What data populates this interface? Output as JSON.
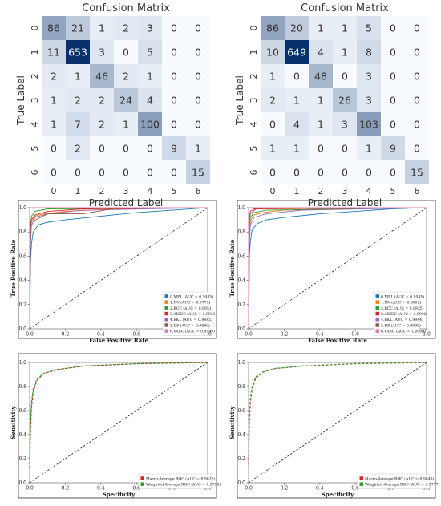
{
  "chart_data": [
    {
      "type": "heatmap",
      "title": "Confusion Matrix",
      "xlabel": "Predicted Label",
      "ylabel": "True Label",
      "x_ticks": [
        "0",
        "1",
        "2",
        "3",
        "4",
        "5",
        "6"
      ],
      "y_ticks": [
        "0",
        "1",
        "2",
        "3",
        "4",
        "5",
        "6"
      ],
      "matrix": [
        [
          86,
          21,
          1,
          2,
          3,
          0,
          0
        ],
        [
          11,
          653,
          3,
          0,
          5,
          0,
          0
        ],
        [
          2,
          1,
          46,
          2,
          1,
          0,
          0
        ],
        [
          1,
          2,
          2,
          24,
          4,
          0,
          0
        ],
        [
          1,
          7,
          2,
          1,
          100,
          0,
          0
        ],
        [
          0,
          2,
          0,
          0,
          0,
          9,
          1
        ],
        [
          0,
          0,
          0,
          0,
          0,
          0,
          15
        ]
      ],
      "colormap": [
        "#f7fbff",
        "#08306b"
      ]
    },
    {
      "type": "heatmap",
      "title": "Confusion Matrix",
      "xlabel": "Predicted Label",
      "ylabel": "True Label",
      "x_ticks": [
        "0",
        "1",
        "2",
        "3",
        "4",
        "5",
        "6"
      ],
      "y_ticks": [
        "0",
        "1",
        "2",
        "3",
        "4",
        "5",
        "6"
      ],
      "matrix": [
        [
          86,
          20,
          1,
          1,
          5,
          0,
          0
        ],
        [
          10,
          649,
          4,
          1,
          8,
          0,
          0
        ],
        [
          1,
          0,
          48,
          0,
          3,
          0,
          0
        ],
        [
          2,
          1,
          1,
          26,
          3,
          0,
          0
        ],
        [
          0,
          4,
          1,
          3,
          103,
          0,
          0
        ],
        [
          1,
          1,
          0,
          0,
          1,
          9,
          0
        ],
        [
          0,
          0,
          0,
          0,
          0,
          0,
          15
        ]
      ],
      "colormap": [
        "#f7fbff",
        "#08306b"
      ]
    },
    {
      "type": "line",
      "xlabel": "False Positive Rate",
      "ylabel": "True Positive Rate",
      "xlim": [
        0,
        1
      ],
      "ylim": [
        0,
        1
      ],
      "x_ticks": [
        "0.0",
        "0.2",
        "0.4",
        "0.6",
        "0.8",
        "1.0"
      ],
      "y_ticks": [
        "0.0",
        "0.2",
        "0.4",
        "0.6",
        "0.8",
        "1.0"
      ],
      "legend_position": "bottom-right",
      "series": [
        {
          "name": "0.MEL (AUC = 0.9435)",
          "color": "#1f77b4",
          "points": [
            [
              0,
              0
            ],
            [
              0.005,
              0.55
            ],
            [
              0.01,
              0.7
            ],
            [
              0.02,
              0.8
            ],
            [
              0.05,
              0.86
            ],
            [
              0.1,
              0.88
            ],
            [
              0.2,
              0.9
            ],
            [
              0.4,
              0.93
            ],
            [
              0.6,
              0.96
            ],
            [
              0.8,
              0.98
            ],
            [
              1,
              1
            ]
          ]
        },
        {
          "name": "1.NV (AUC = 0.9775)",
          "color": "#ff7f0e",
          "points": [
            [
              0,
              0
            ],
            [
              0.005,
              0.75
            ],
            [
              0.01,
              0.88
            ],
            [
              0.03,
              0.93
            ],
            [
              0.08,
              0.95
            ],
            [
              0.2,
              0.97
            ],
            [
              0.5,
              0.99
            ],
            [
              1,
              1
            ]
          ]
        },
        {
          "name": "2.BCC (AUC = 0.9951)",
          "color": "#2ca02c",
          "points": [
            [
              0,
              0
            ],
            [
              0.003,
              0.8
            ],
            [
              0.01,
              0.93
            ],
            [
              0.03,
              0.97
            ],
            [
              0.1,
              0.99
            ],
            [
              1,
              1
            ]
          ]
        },
        {
          "name": "3.AKIEC (AUC = 0.9923)",
          "color": "#d62728",
          "points": [
            [
              0,
              0
            ],
            [
              0.005,
              0.82
            ],
            [
              0.01,
              0.9
            ],
            [
              0.03,
              0.94
            ],
            [
              0.1,
              0.97
            ],
            [
              0.3,
              0.99
            ],
            [
              1,
              1
            ]
          ]
        },
        {
          "name": "4.BKL (AUC = 0.9845)",
          "color": "#9467bd",
          "points": [
            [
              0,
              0
            ],
            [
              0.005,
              0.7
            ],
            [
              0.01,
              0.85
            ],
            [
              0.03,
              0.92
            ],
            [
              0.1,
              0.95
            ],
            [
              0.3,
              0.98
            ],
            [
              1,
              1
            ]
          ]
        },
        {
          "name": "5.DF (AUC = 0.9880)",
          "color": "#8c564b",
          "points": [
            [
              0,
              0
            ],
            [
              0.005,
              0.89
            ],
            [
              0.02,
              0.89
            ],
            [
              0.1,
              0.95
            ],
            [
              0.3,
              0.95
            ],
            [
              0.5,
              1
            ],
            [
              1,
              1
            ]
          ]
        },
        {
          "name": "6.VASC (AUC = 0.9999)",
          "color": "#e377c2",
          "points": [
            [
              0,
              0
            ],
            [
              0.002,
              1
            ],
            [
              1,
              1
            ]
          ]
        }
      ]
    },
    {
      "type": "line",
      "xlabel": "False Positive Rate",
      "ylabel": "True Positive Rate",
      "xlim": [
        0,
        1
      ],
      "ylim": [
        0,
        1
      ],
      "x_ticks": [
        "0.0",
        "0.2",
        "0.4",
        "0.6",
        "0.8",
        "1.0"
      ],
      "y_ticks": [
        "0.0",
        "0.2",
        "0.4",
        "0.6",
        "0.8",
        "1.0"
      ],
      "legend_position": "bottom-right",
      "series": [
        {
          "name": "0.MEL (AUC = 0.9545)",
          "color": "#1f77b4",
          "points": [
            [
              0,
              0
            ],
            [
              0.005,
              0.6
            ],
            [
              0.01,
              0.72
            ],
            [
              0.02,
              0.82
            ],
            [
              0.05,
              0.87
            ],
            [
              0.1,
              0.9
            ],
            [
              0.2,
              0.92
            ],
            [
              0.4,
              0.95
            ],
            [
              0.6,
              0.97
            ],
            [
              0.8,
              0.99
            ],
            [
              1,
              1
            ]
          ]
        },
        {
          "name": "1.NV (AUC = 0.9802)",
          "color": "#ff7f0e",
          "points": [
            [
              0,
              0
            ],
            [
              0.005,
              0.78
            ],
            [
              0.01,
              0.89
            ],
            [
              0.03,
              0.94
            ],
            [
              0.08,
              0.96
            ],
            [
              0.2,
              0.98
            ],
            [
              0.5,
              0.99
            ],
            [
              1,
              1
            ]
          ]
        },
        {
          "name": "2.BCC (AUC = 0.9925)",
          "color": "#2ca02c",
          "points": [
            [
              0,
              0
            ],
            [
              0.003,
              0.82
            ],
            [
              0.01,
              0.92
            ],
            [
              0.03,
              0.96
            ],
            [
              0.1,
              0.98
            ],
            [
              1,
              1
            ]
          ]
        },
        {
          "name": "3.AKIEC (AUC = 0.9992)",
          "color": "#d62728",
          "points": [
            [
              0,
              0
            ],
            [
              0.003,
              0.9
            ],
            [
              0.01,
              0.97
            ],
            [
              0.03,
              0.99
            ],
            [
              1,
              1
            ]
          ]
        },
        {
          "name": "4.BKL (AUC = 0.9844)",
          "color": "#9467bd",
          "points": [
            [
              0,
              0
            ],
            [
              0.005,
              0.72
            ],
            [
              0.01,
              0.86
            ],
            [
              0.03,
              0.92
            ],
            [
              0.1,
              0.95
            ],
            [
              0.3,
              0.98
            ],
            [
              1,
              1
            ]
          ]
        },
        {
          "name": "5.DF (AUC = 0.9990)",
          "color": "#8c564b",
          "points": [
            [
              0,
              0
            ],
            [
              0.003,
              0.89
            ],
            [
              0.01,
              0.95
            ],
            [
              0.05,
              1
            ],
            [
              1,
              1
            ]
          ]
        },
        {
          "name": "6.VASC (AUC = 1.0000)",
          "color": "#e377c2",
          "points": [
            [
              0,
              0
            ],
            [
              0,
              1
            ],
            [
              1,
              1
            ]
          ]
        }
      ]
    },
    {
      "type": "line",
      "xlabel": "Specificity",
      "ylabel": "Sensitivity",
      "xlim": [
        0,
        1
      ],
      "ylim": [
        0,
        1
      ],
      "x_ticks": [
        "0.0",
        "0.2",
        "0.4",
        "0.6",
        "0.8",
        "1.0"
      ],
      "y_ticks": [
        "0.0",
        "0.2",
        "0.4",
        "0.6",
        "0.8",
        "1.0"
      ],
      "legend_position": "bottom-right",
      "series": [
        {
          "name": "Macro-Average ROC (AUC = 0.9822)",
          "color": "#d62728",
          "dashed": true,
          "points": [
            [
              0,
              0.12
            ],
            [
              0.005,
              0.45
            ],
            [
              0.01,
              0.62
            ],
            [
              0.02,
              0.75
            ],
            [
              0.04,
              0.85
            ],
            [
              0.08,
              0.91
            ],
            [
              0.15,
              0.94
            ],
            [
              0.3,
              0.97
            ],
            [
              0.6,
              0.99
            ],
            [
              1,
              1
            ]
          ]
        },
        {
          "name": "Weighted-Average ROC (AUC = 0.9750)",
          "color": "#2ca02c",
          "dashed": true,
          "points": [
            [
              0,
              0.2
            ],
            [
              0.005,
              0.5
            ],
            [
              0.01,
              0.66
            ],
            [
              0.02,
              0.78
            ],
            [
              0.04,
              0.86
            ],
            [
              0.08,
              0.91
            ],
            [
              0.15,
              0.94
            ],
            [
              0.3,
              0.97
            ],
            [
              0.6,
              0.99
            ],
            [
              1,
              1
            ]
          ]
        }
      ]
    },
    {
      "type": "line",
      "xlabel": "Specificity",
      "ylabel": "Sensitivity",
      "xlim": [
        0,
        1
      ],
      "ylim": [
        0,
        1
      ],
      "x_ticks": [
        "0.0",
        "0.2",
        "0.4",
        "0.6",
        "0.8",
        "1.0"
      ],
      "y_ticks": [
        "0.0",
        "0.2",
        "0.4",
        "0.6",
        "0.8",
        "1.0"
      ],
      "legend_position": "bottom-right",
      "series": [
        {
          "name": "Macro-Average ROC (AUC = 0.9849)",
          "color": "#d62728",
          "dashed": true,
          "points": [
            [
              0,
              0.15
            ],
            [
              0.005,
              0.5
            ],
            [
              0.01,
              0.66
            ],
            [
              0.02,
              0.78
            ],
            [
              0.04,
              0.87
            ],
            [
              0.08,
              0.92
            ],
            [
              0.15,
              0.95
            ],
            [
              0.3,
              0.97
            ],
            [
              0.6,
              0.99
            ],
            [
              1,
              1
            ]
          ]
        },
        {
          "name": "Weighted-Average ROC (AUC = 0.9777)",
          "color": "#2ca02c",
          "dashed": true,
          "points": [
            [
              0,
              0.22
            ],
            [
              0.005,
              0.55
            ],
            [
              0.01,
              0.7
            ],
            [
              0.02,
              0.8
            ],
            [
              0.04,
              0.88
            ],
            [
              0.08,
              0.92
            ],
            [
              0.15,
              0.95
            ],
            [
              0.3,
              0.97
            ],
            [
              0.6,
              0.99
            ],
            [
              1,
              1
            ]
          ]
        }
      ]
    }
  ]
}
